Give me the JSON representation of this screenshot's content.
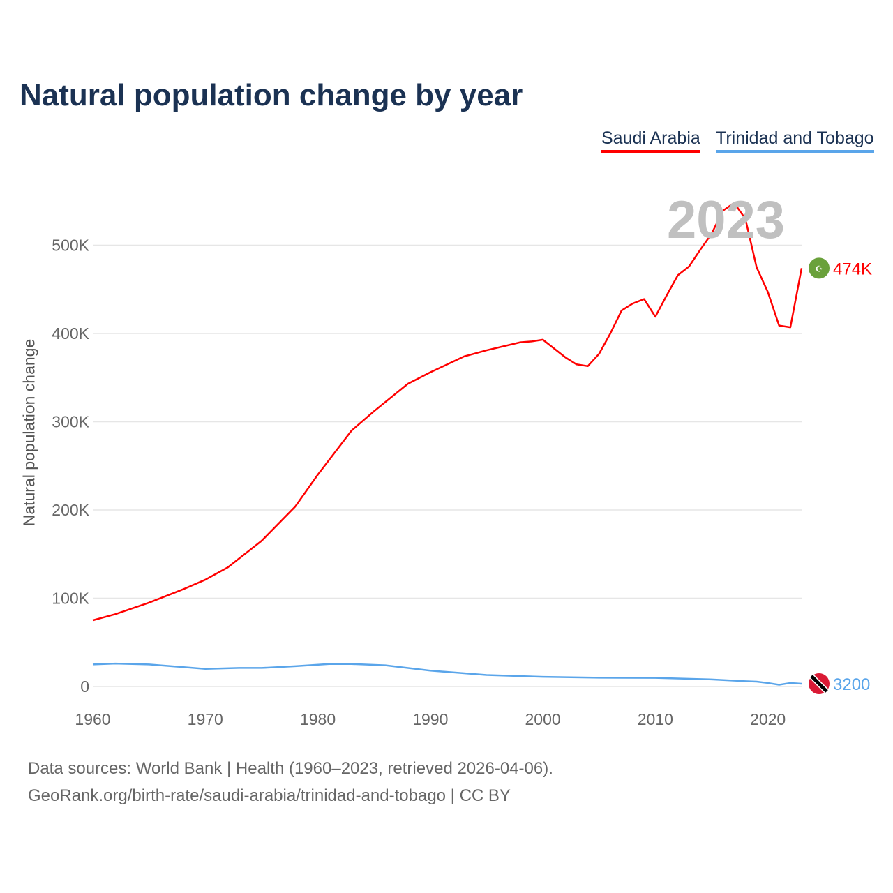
{
  "chart_data": {
    "type": "line",
    "title": "Natural population change by year",
    "xlabel": "",
    "ylabel": "Natural population change",
    "xlim": [
      1960,
      2023
    ],
    "ylim": [
      0,
      550000
    ],
    "x_ticks": [
      "1960",
      "1970",
      "1980",
      "1990",
      "2000",
      "2010",
      "2020"
    ],
    "y_ticks": [
      {
        "v": 0,
        "label": "0"
      },
      {
        "v": 100000,
        "label": "100K"
      },
      {
        "v": 200000,
        "label": "200K"
      },
      {
        "v": 300000,
        "label": "300K"
      },
      {
        "v": 400000,
        "label": "400K"
      },
      {
        "v": 500000,
        "label": "500K"
      }
    ],
    "highlight_year": "2023",
    "grid": true,
    "legend_position": "top-right",
    "series": [
      {
        "name": "Saudi Arabia",
        "color": "#ff0000",
        "end_label": "474K",
        "x": [
          1960,
          1962,
          1965,
          1968,
          1970,
          1972,
          1975,
          1978,
          1980,
          1983,
          1985,
          1988,
          1990,
          1993,
          1995,
          1998,
          1999,
          2000,
          2002,
          2003,
          2004,
          2005,
          2006,
          2007,
          2008,
          2009,
          2010,
          2011,
          2012,
          2013,
          2014,
          2015,
          2016,
          2017,
          2018,
          2019,
          2020,
          2021,
          2022,
          2023
        ],
        "values": [
          75000,
          82000,
          95000,
          110000,
          121000,
          135000,
          165000,
          204000,
          240000,
          290000,
          312000,
          343000,
          356000,
          374000,
          381000,
          390000,
          391000,
          393000,
          373000,
          365000,
          363000,
          377000,
          400000,
          426000,
          434000,
          439000,
          419000,
          443000,
          466000,
          476000,
          495000,
          513000,
          539000,
          548000,
          530000,
          475000,
          447000,
          409000,
          407000,
          474000
        ]
      },
      {
        "name": "Trinidad and Tobago",
        "color": "#5aa5ea",
        "end_label": "3200",
        "x": [
          1960,
          1962,
          1965,
          1970,
          1973,
          1975,
          1978,
          1981,
          1983,
          1986,
          1990,
          1995,
          2000,
          2005,
          2010,
          2015,
          2018,
          2019,
          2020,
          2021,
          2022,
          2023
        ],
        "values": [
          25000,
          26000,
          25000,
          20000,
          21000,
          21000,
          23000,
          25500,
          25500,
          24000,
          18000,
          13000,
          11000,
          10000,
          9800,
          8000,
          6000,
          5500,
          4000,
          2000,
          4000,
          3200
        ]
      }
    ]
  },
  "source_line1": "Data sources: World Bank | Health (1960–2023, retrieved 2026-04-06).",
  "source_line2": "GeoRank.org/birth-rate/saudi-arabia/trinidad-and-tobago | CC BY"
}
